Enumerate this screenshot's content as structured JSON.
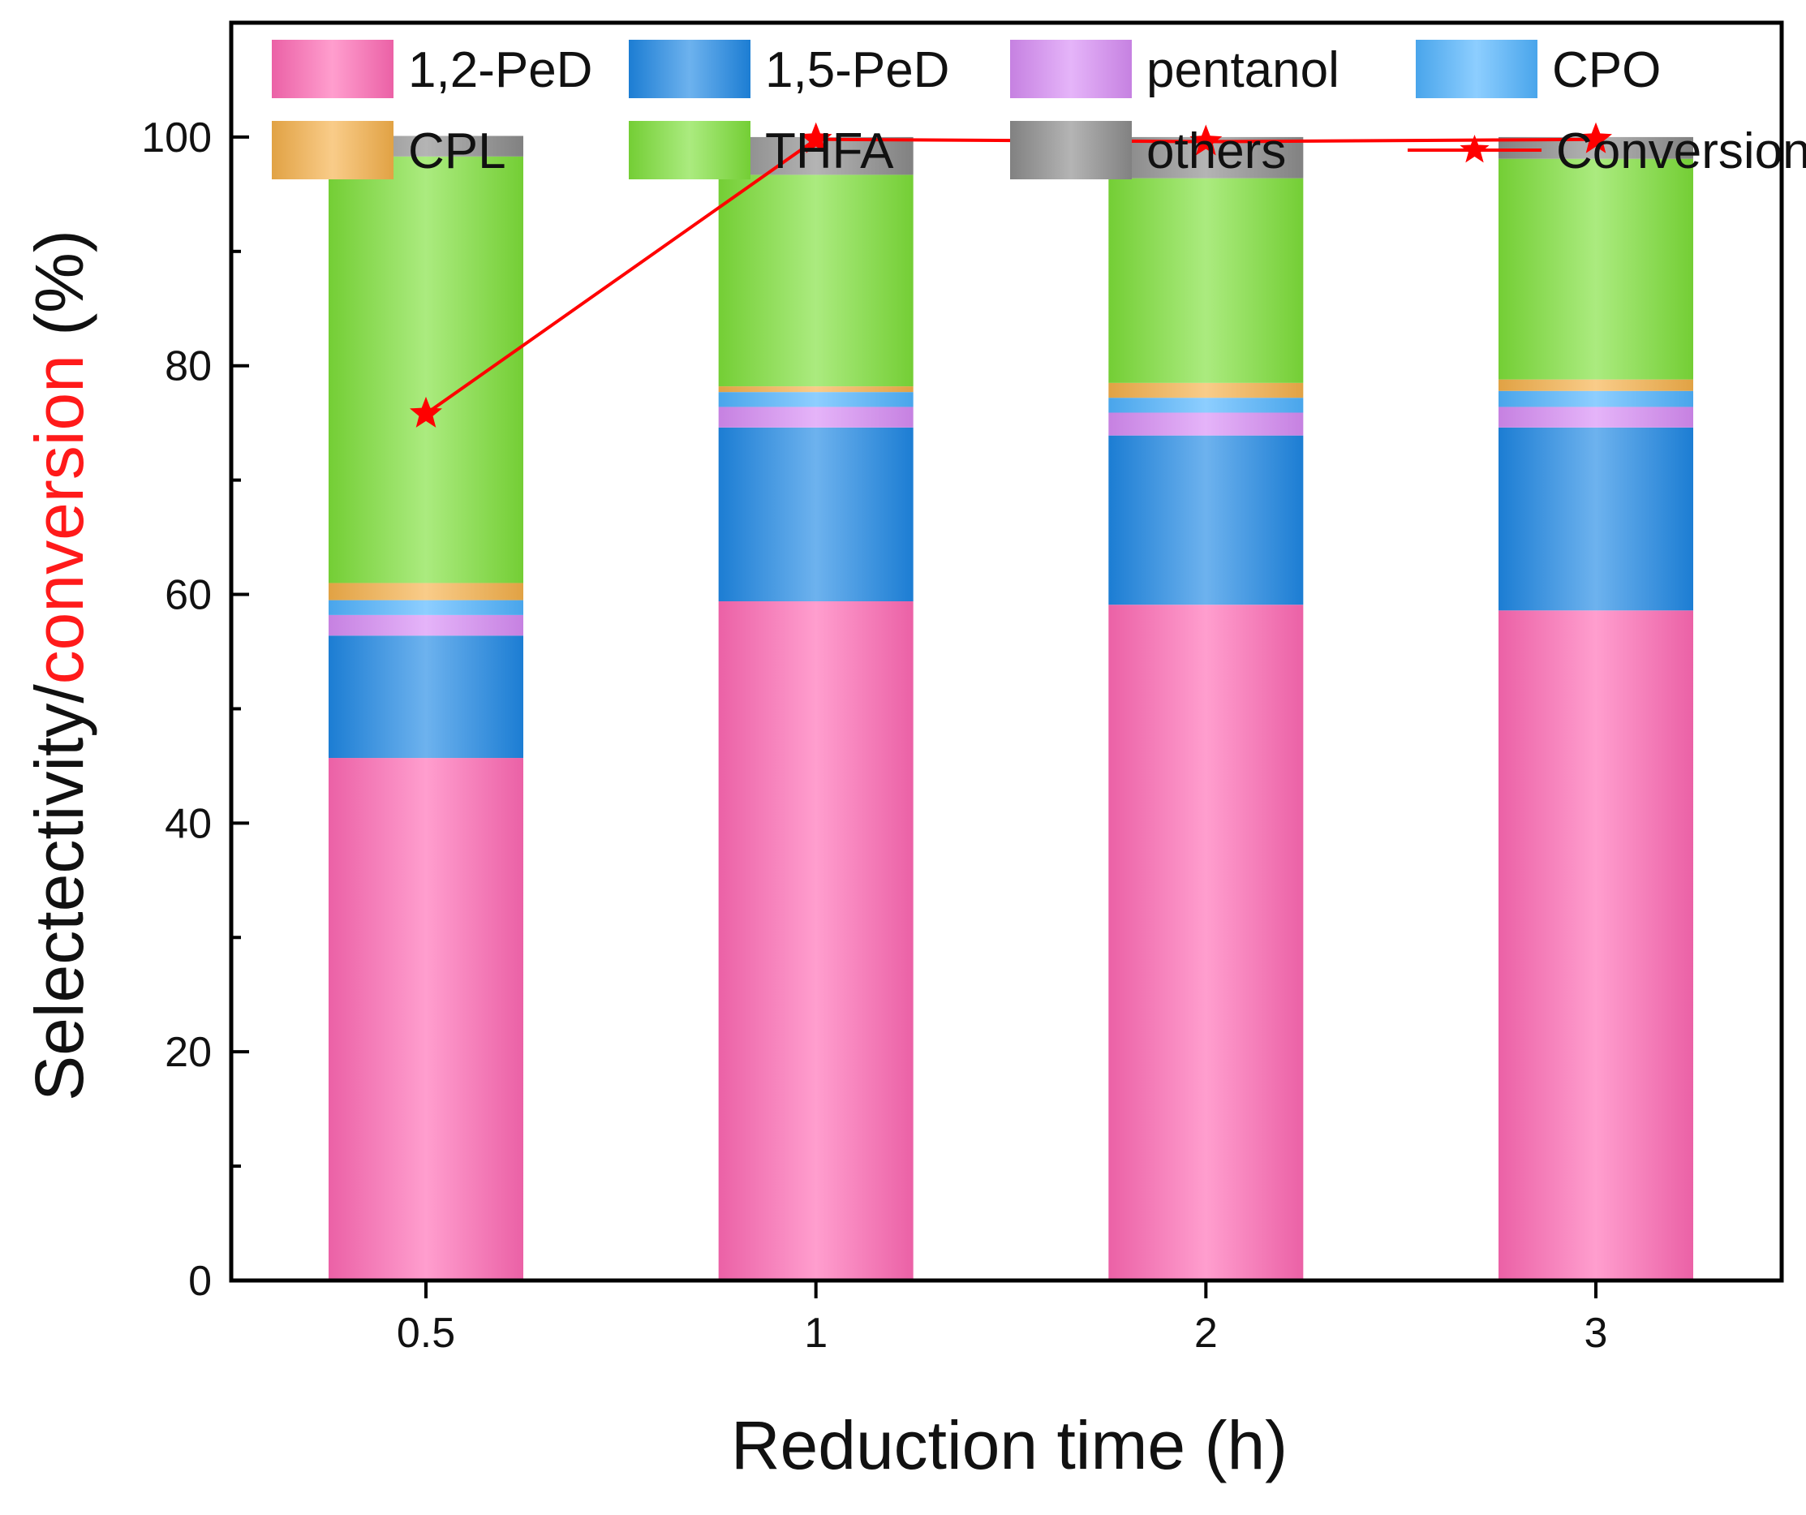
{
  "chart_data": {
    "type": "bar",
    "stacked": true,
    "categories": [
      "0.5",
      "1",
      "2",
      "3"
    ],
    "xlabel": "Reduction time (h)",
    "ylabel_parts": [
      {
        "text": "Selectectivity/",
        "color": "#111111"
      },
      {
        "text": "conversion",
        "color": "#ff1a1a"
      },
      {
        "text": " (%)",
        "color": "#111111"
      }
    ],
    "ylim": [
      0,
      110
    ],
    "yticks": [
      0,
      20,
      40,
      60,
      80,
      100
    ],
    "grid": false,
    "legend_position": "top",
    "series": [
      {
        "name": "1,2-PeD",
        "color": "#ff69b4",
        "values": [
          45.7,
          59.4,
          59.1,
          58.6
        ]
      },
      {
        "name": "1,5-PeD",
        "color": "#1e88e5",
        "values": [
          10.7,
          15.2,
          14.8,
          16.0
        ]
      },
      {
        "name": "pentanol",
        "color": "#d78cf5",
        "values": [
          1.8,
          1.8,
          2.0,
          1.8
        ]
      },
      {
        "name": "CPO",
        "color": "#4fb3ff",
        "values": [
          1.3,
          1.3,
          1.3,
          1.4
        ]
      },
      {
        "name": "CPL",
        "color": "#f5b04a",
        "values": [
          1.5,
          0.5,
          1.3,
          1.0
        ]
      },
      {
        "name": "THFA",
        "color": "#7ee03a",
        "values": [
          37.3,
          18.5,
          17.9,
          19.3
        ]
      },
      {
        "name": "others",
        "color": "#8c8c8c",
        "values": [
          1.8,
          3.3,
          3.6,
          1.9
        ]
      }
    ],
    "line_series": {
      "name": "Conversion",
      "color": "#ff0000",
      "marker": "star",
      "values": [
        75.8,
        99.8,
        99.6,
        99.8
      ]
    }
  }
}
